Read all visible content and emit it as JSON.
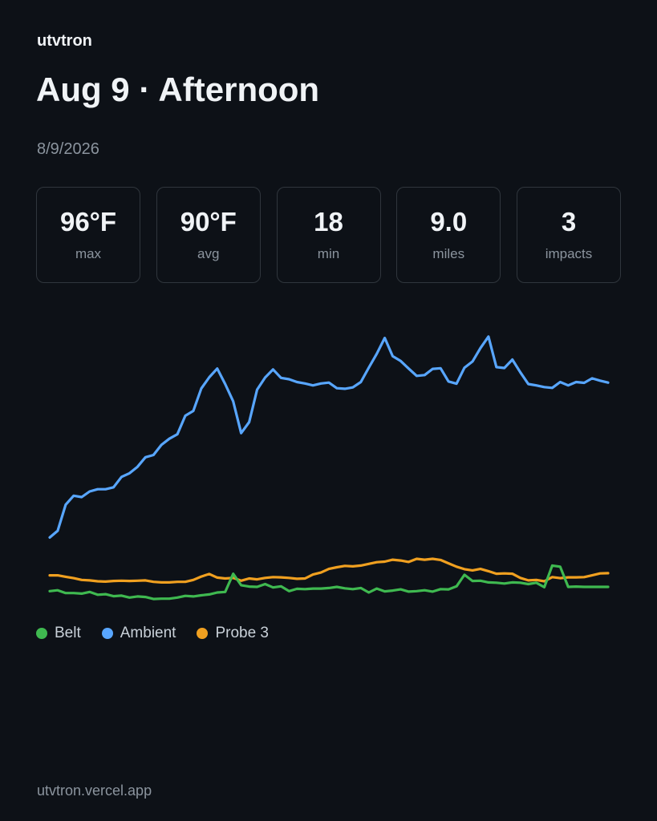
{
  "brand": "utvtron",
  "title": "Aug 9 · Afternoon",
  "date": "8/9/2026",
  "stats": [
    {
      "value": "96°F",
      "label": "max"
    },
    {
      "value": "90°F",
      "label": "avg"
    },
    {
      "value": "18",
      "label": "min"
    },
    {
      "value": "9.0",
      "label": "miles"
    },
    {
      "value": "3",
      "label": "impacts"
    }
  ],
  "footer": "utvtron.vercel.app",
  "chart_data": {
    "type": "line",
    "title": "",
    "xlabel": "",
    "ylabel": "",
    "grid": false,
    "legend": "bottom-left",
    "x": [
      0,
      1,
      2,
      3,
      4,
      5,
      6,
      7,
      8,
      9,
      10,
      11,
      12,
      13,
      14,
      15,
      16,
      17,
      18,
      19,
      20,
      21,
      22,
      23,
      24,
      25,
      26,
      27,
      28,
      29,
      30,
      31,
      32,
      33,
      34,
      35,
      36,
      37,
      38,
      39,
      40,
      41,
      42,
      43,
      44,
      45,
      46,
      47,
      48,
      49,
      50,
      51,
      52,
      53,
      54,
      55,
      56,
      57,
      58,
      59,
      60,
      61,
      62,
      63,
      64,
      65,
      66,
      67,
      68,
      69,
      70
    ],
    "ylim": [
      0,
      100
    ],
    "series": [
      {
        "name": "Belt",
        "color": "#3fb950",
        "values": [
          6.5,
          6.8,
          5.8,
          5.8,
          5.6,
          6.2,
          5.2,
          5.4,
          4.7,
          4.9,
          4.2,
          4.6,
          4.4,
          3.7,
          3.8,
          3.8,
          4.2,
          4.8,
          4.6,
          5.0,
          5.3,
          6.0,
          6.2,
          12.7,
          8.6,
          8.1,
          8.0,
          9.0,
          7.8,
          8.2,
          6.5,
          7.3,
          7.2,
          7.4,
          7.4,
          7.6,
          8.0,
          7.5,
          7.2,
          7.6,
          6.0,
          7.4,
          6.4,
          6.7,
          7.1,
          6.3,
          6.5,
          6.8,
          6.3,
          7.2,
          7.1,
          8.2,
          12.3,
          10.1,
          10.2,
          9.6,
          9.5,
          9.2,
          9.6,
          9.5,
          9.0,
          9.5,
          7.9,
          15.6,
          15.2,
          8.0,
          8.1,
          8.0,
          8.0,
          8.0,
          8.0
        ]
      },
      {
        "name": "Ambient",
        "color": "#58a6ff",
        "values": [
          25.6,
          28,
          37.3,
          40.5,
          40,
          42,
          42.8,
          42.8,
          43.5,
          47.2,
          48.5,
          50.8,
          54.2,
          55,
          58.6,
          60.8,
          62.4,
          69,
          70.7,
          78.7,
          82.7,
          85.8,
          80.3,
          74.1,
          62.8,
          66.7,
          78.3,
          82.6,
          85.5,
          82.5,
          82.0,
          81.0,
          80.5,
          79.8,
          80.5,
          80.8,
          78.8,
          78.6,
          79.1,
          81.0,
          86.1,
          91.1,
          96.7,
          90.2,
          88.5,
          85.8,
          83.2,
          83.5,
          85.7,
          85.9,
          81.2,
          80.4,
          86.1,
          88.3,
          93.1,
          97.2,
          86.3,
          86.0,
          89.0,
          84.5,
          80.3,
          79.8,
          79.2,
          78.9,
          81.0,
          79.8,
          81.0,
          80.7,
          82.3,
          81.5,
          80.8
        ]
      },
      {
        "name": "Probe 3",
        "color": "#f0a020",
        "values": [
          12.1,
          12.1,
          11.6,
          11.1,
          10.5,
          10.3,
          10.0,
          9.9,
          10.1,
          10.2,
          10.1,
          10.2,
          10.3,
          9.8,
          9.6,
          9.6,
          9.8,
          9.8,
          10.5,
          11.7,
          12.6,
          11.3,
          11.0,
          11.2,
          10.2,
          11.0,
          10.7,
          11.2,
          11.5,
          11.4,
          11.2,
          10.9,
          11.0,
          12.4,
          13.1,
          14.4,
          15.0,
          15.5,
          15.3,
          15.6,
          16.2,
          16.8,
          17.0,
          17.7,
          17.4,
          16.9,
          18.0,
          17.7,
          18.0,
          17.6,
          16.4,
          15.2,
          14.3,
          13.9,
          14.4,
          13.6,
          12.7,
          12.8,
          12.7,
          11.2,
          10.3,
          10.5,
          10.0,
          11.5,
          11.1,
          11.4,
          11.4,
          11.5,
          12.1,
          12.8,
          12.9
        ]
      }
    ]
  }
}
